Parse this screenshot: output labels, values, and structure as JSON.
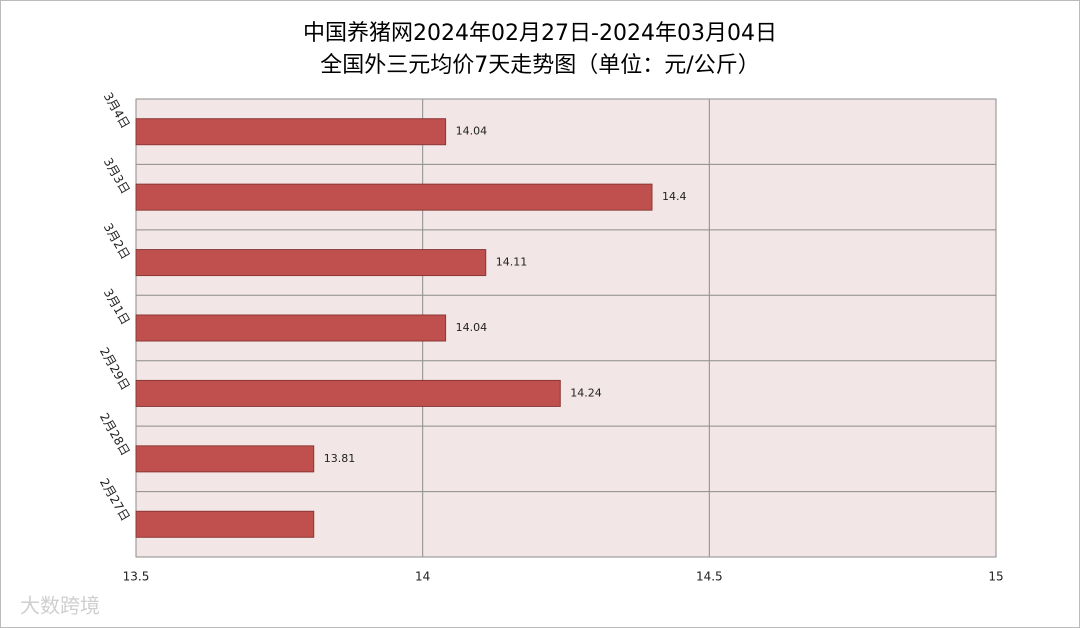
{
  "chart_data": {
    "type": "barh",
    "title": "中国养猪网2024年02月27日-2024年03月04日",
    "subtitle": "全国外三元均价7天走势图（单位：元/公斤）",
    "categories": [
      "3月4日",
      "3月3日",
      "3月2日",
      "3月1日",
      "2月29日",
      "2月28日",
      "2月27日"
    ],
    "values": [
      14.04,
      14.4,
      14.11,
      14.04,
      14.24,
      13.81,
      13.81
    ],
    "value_labels": [
      "14.04",
      "14.4",
      "14.11",
      "14.04",
      "14.24",
      "13.81",
      null
    ],
    "color": "#c0504d",
    "xlim": [
      13.5,
      15
    ],
    "xticks": [
      13.5,
      14,
      14.5,
      15
    ],
    "grid": true,
    "watermark": "大数跨境"
  }
}
